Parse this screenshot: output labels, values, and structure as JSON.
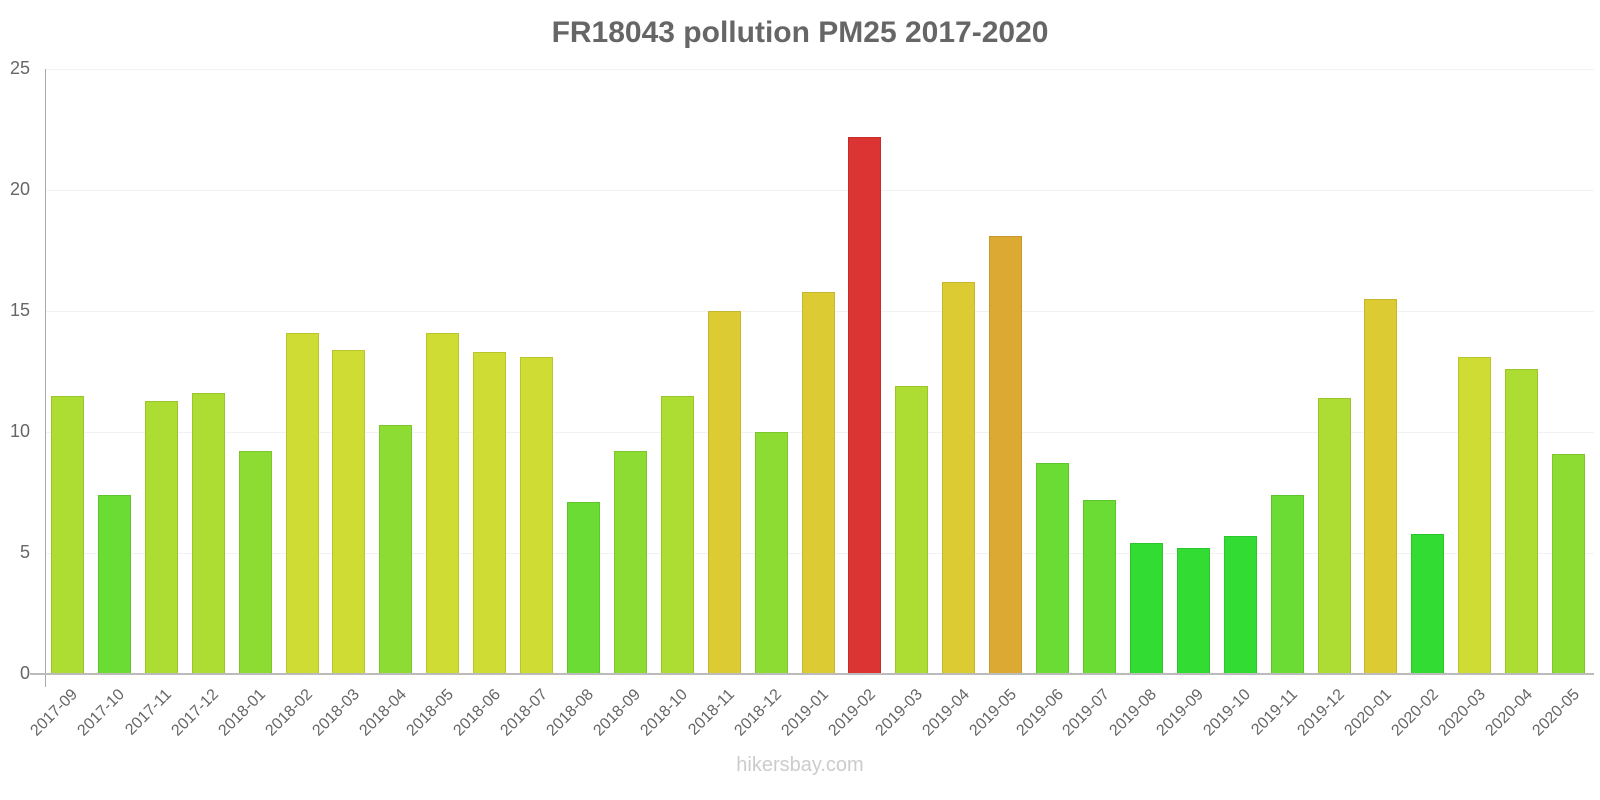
{
  "chart_data": {
    "type": "bar",
    "title": "FR18043 pollution PM25 2017-2020",
    "xlabel": "",
    "ylabel": "",
    "ylim": [
      0,
      25
    ],
    "yticks": [
      0,
      5,
      10,
      15,
      20,
      25
    ],
    "grid": true,
    "legend": null,
    "categories": [
      "2017-09",
      "2017-10",
      "2017-11",
      "2017-12",
      "2018-01",
      "2018-02",
      "2018-03",
      "2018-04",
      "2018-05",
      "2018-06",
      "2018-07",
      "2018-08",
      "2018-09",
      "2018-10",
      "2018-11",
      "2018-12",
      "2019-01",
      "2019-02",
      "2019-03",
      "2019-04",
      "2019-05",
      "2019-06",
      "2019-07",
      "2019-08",
      "2019-09",
      "2019-10",
      "2019-11",
      "2019-12",
      "2020-01",
      "2020-02",
      "2020-03",
      "2020-04",
      "2020-05"
    ],
    "values": [
      11.5,
      7.4,
      11.3,
      11.6,
      9.2,
      14.1,
      13.4,
      10.3,
      14.1,
      13.3,
      13.1,
      7.1,
      9.2,
      11.5,
      15.0,
      10.0,
      15.8,
      22.2,
      11.9,
      16.2,
      18.1,
      8.7,
      7.2,
      5.4,
      5.2,
      5.7,
      7.4,
      11.4,
      15.5,
      5.8,
      13.1,
      12.6,
      9.1
    ],
    "colors": [
      "#addc33",
      "#6adc33",
      "#addc33",
      "#addc33",
      "#8cdc33",
      "#cfdc33",
      "#cfdc33",
      "#8cdc33",
      "#cfdc33",
      "#cfdc33",
      "#cfdc33",
      "#6adc33",
      "#8cdc33",
      "#addc33",
      "#dccb33",
      "#8cdc33",
      "#dccb33",
      "#dc3333",
      "#addc33",
      "#dccb33",
      "#dcaa33",
      "#6adc33",
      "#6adc33",
      "#33dc33",
      "#33dc33",
      "#33dc33",
      "#6adc33",
      "#addc33",
      "#dccb33",
      "#33dc33",
      "#cfdc33",
      "#addc33",
      "#8cdc33"
    ]
  },
  "watermark": "hikersbay.com"
}
